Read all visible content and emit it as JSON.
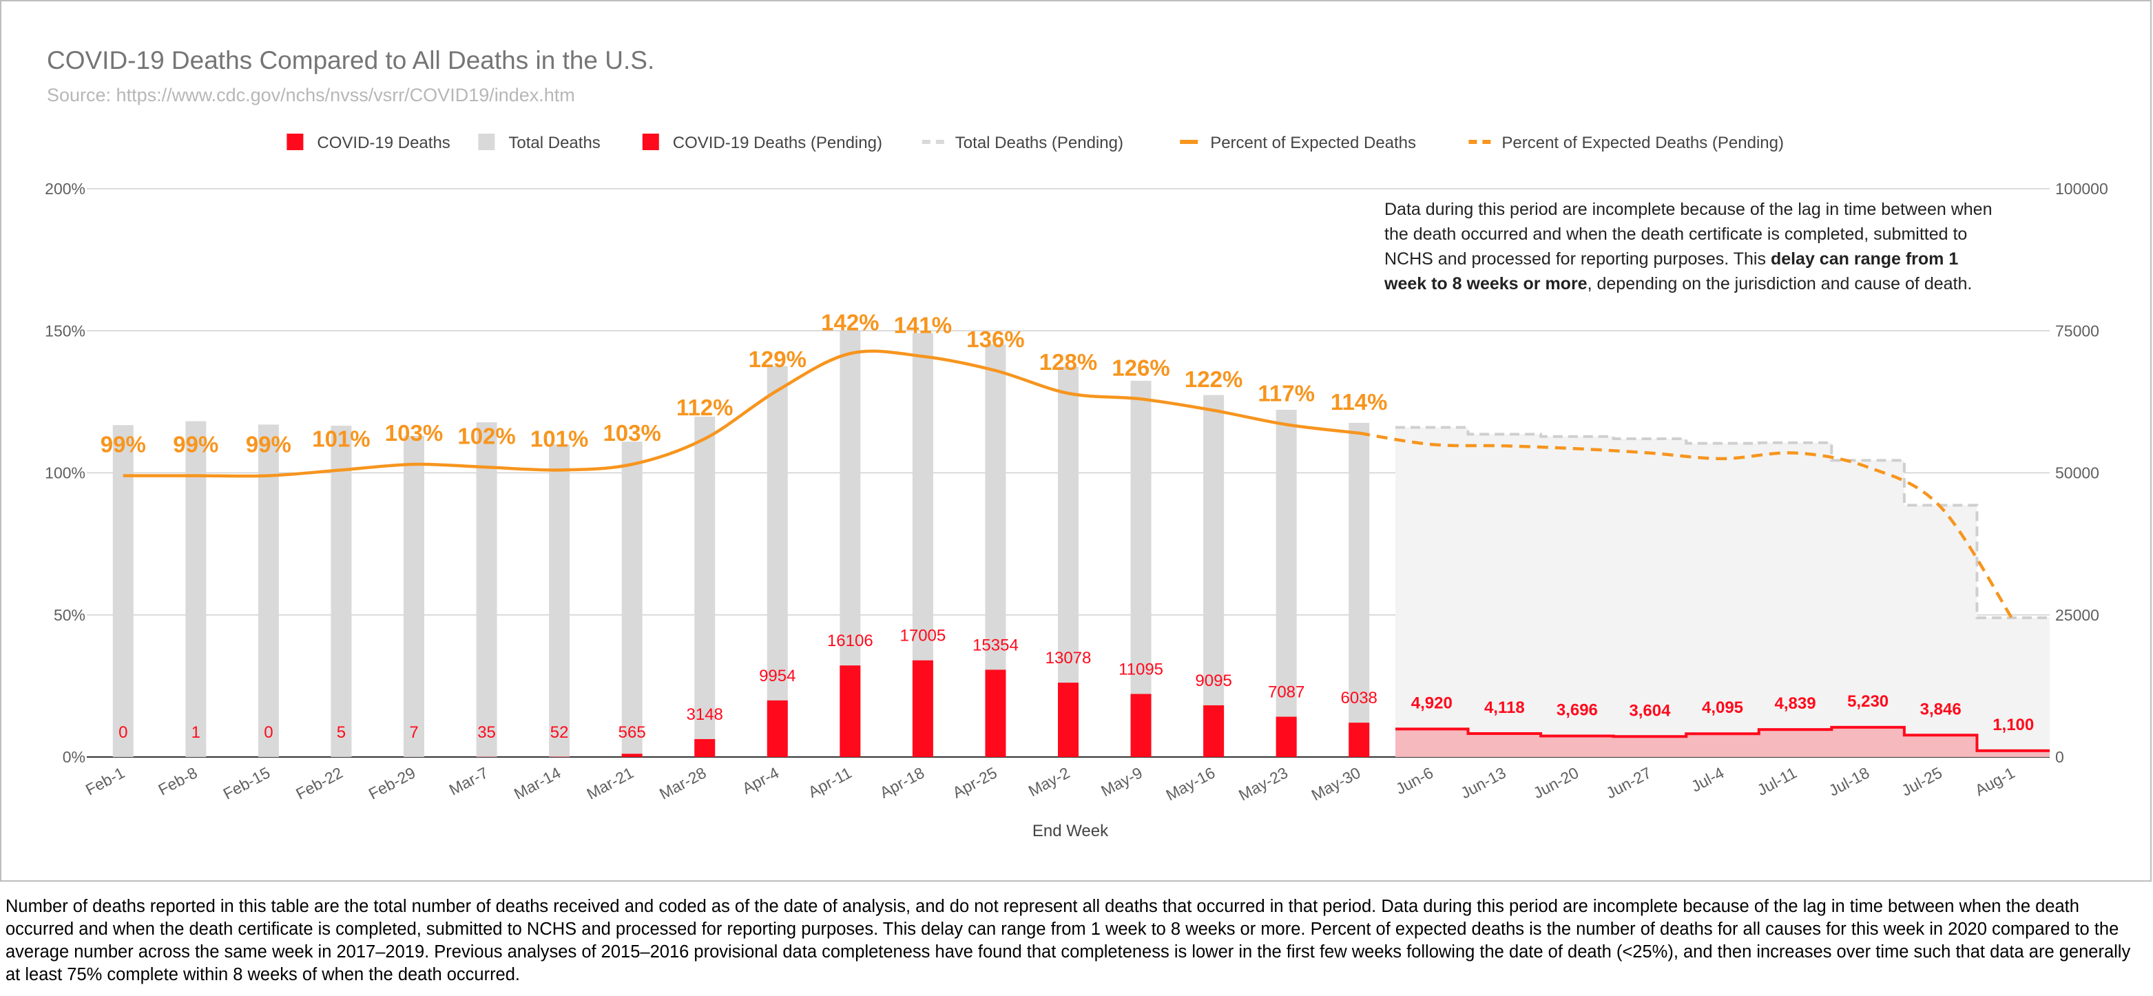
{
  "colors": {
    "covid": "#ff0a1c",
    "covid_pending_fill": "#f5b9be",
    "total": "#d9d9d9",
    "total_pending_fill": "#f3f3f3",
    "total_pending_line": "#cfcfcf",
    "percent": "#f7951e",
    "grid": "#d0d0d0",
    "text": "#5f5f5f",
    "title": "#757575",
    "source": "#b7b7b7"
  },
  "footnote": "Number of deaths reported in this table are the total number of deaths received and coded as of the date of analysis, and do not represent all deaths that occurred in that period. Data during this period are incomplete because of the lag in time between when the death occurred and when the death certificate is completed, submitted to NCHS and processed for reporting purposes. This delay can range from 1 week to 8 weeks or more. Percent of expected deaths is the number of deaths for all causes for this week in 2020 compared to the average number across the same week in 2017–2019. Previous analyses of 2015–2016 provisional data completeness have found that completeness is lower in the first few weeks following the date of death (<25%), and then increases over time such that data are generally at least 75% complete within 8 weeks of when the death occurred.",
  "annotation": {
    "part1": "Data during this period are incomplete because of the lag in time between when the death occurred and when the death certificate is completed, submitted to NCHS and processed for reporting purposes. This ",
    "bold": "delay can range from 1 week to 8 weeks or more",
    "part2": ", depending on the jurisdiction and cause of death."
  },
  "chart_data": {
    "type": "bar",
    "title": "COVID-19 Deaths Compared to All Deaths in the U.S.",
    "subtitle": "Source: https://www.cdc.gov/nchs/nvss/vsrr/COVID19/index.htm",
    "xlabel": "End Week",
    "ylabel_left": "",
    "ylabel_right": "",
    "y_left_lim": [
      0,
      200
    ],
    "y_left_ticks": [
      "0%",
      "50%",
      "100%",
      "150%",
      "200%"
    ],
    "y_right_lim": [
      0,
      100000
    ],
    "y_right_ticks": [
      "0",
      "25000",
      "50000",
      "75000",
      "100000"
    ],
    "legend_position": "top",
    "grid": true,
    "legend": [
      {
        "name": "COVID-19 Deaths",
        "kind": "box",
        "color": "#ff0a1c"
      },
      {
        "name": "Total Deaths",
        "kind": "box",
        "color": "#d9d9d9"
      },
      {
        "name": "COVID-19 Deaths (Pending)",
        "kind": "box",
        "color": "#ff0a1c"
      },
      {
        "name": "Total Deaths (Pending)",
        "kind": "dash",
        "color": "#d9d9d9"
      },
      {
        "name": "Percent of Expected Deaths",
        "kind": "line",
        "color": "#f7951e"
      },
      {
        "name": "Percent of Expected Deaths (Pending)",
        "kind": "dash",
        "color": "#f7951e"
      }
    ],
    "categories": [
      "Feb-1",
      "Feb-8",
      "Feb-15",
      "Feb-22",
      "Feb-29",
      "Mar-7",
      "Mar-14",
      "Mar-21",
      "Mar-28",
      "Apr-4",
      "Apr-11",
      "Apr-18",
      "Apr-25",
      "May-2",
      "May-9",
      "May-16",
      "May-23",
      "May-30",
      "Jun-6",
      "Jun-13",
      "Jun-20",
      "Jun-27",
      "Jul-4",
      "Jul-11",
      "Jul-18",
      "Jul-25",
      "Aug-1"
    ],
    "series": [
      {
        "name": "COVID-19 Deaths",
        "values": [
          0,
          1,
          0,
          5,
          7,
          35,
          52,
          565,
          3148,
          9954,
          16106,
          17005,
          15354,
          13078,
          11095,
          9095,
          7087,
          6038,
          null,
          null,
          null,
          null,
          null,
          null,
          null,
          null,
          null
        ],
        "labels": [
          "0",
          "1",
          "0",
          "5",
          "7",
          "35",
          "52",
          "565",
          "3148",
          "9954",
          "16106",
          "17005",
          "15354",
          "13078",
          "11095",
          "9095",
          "7087",
          "6038",
          "",
          "",
          "",
          "",
          "",
          "",
          "",
          "",
          ""
        ]
      },
      {
        "name": "Total Deaths",
        "values": [
          58400,
          59100,
          58500,
          58300,
          56500,
          58900,
          55000,
          55500,
          59900,
          68800,
          74900,
          74600,
          72600,
          68700,
          66200,
          63700,
          61100,
          58800,
          null,
          null,
          null,
          null,
          null,
          null,
          null,
          null,
          null
        ]
      },
      {
        "name": "COVID-19 Deaths (Pending)",
        "values": [
          null,
          null,
          null,
          null,
          null,
          null,
          null,
          null,
          null,
          null,
          null,
          null,
          null,
          null,
          null,
          null,
          null,
          null,
          4920,
          4118,
          3696,
          3604,
          4095,
          4839,
          5230,
          3846,
          1100
        ],
        "labels": [
          "",
          "",
          "",
          "",
          "",
          "",
          "",
          "",
          "",
          "",
          "",
          "",
          "",
          "",
          "",
          "",
          "",
          "",
          "4,920",
          "4,118",
          "3,696",
          "3,604",
          "4,095",
          "4,839",
          "5,230",
          "3,846",
          "1,100"
        ]
      },
      {
        "name": "Total Deaths (Pending)",
        "values": [
          null,
          null,
          null,
          null,
          null,
          null,
          null,
          null,
          null,
          null,
          null,
          null,
          null,
          null,
          null,
          null,
          null,
          null,
          58000,
          56800,
          56400,
          56000,
          55200,
          55300,
          52200,
          44300,
          24500
        ]
      },
      {
        "name": "Percent of Expected Deaths",
        "values": [
          99,
          99,
          99,
          101,
          103,
          102,
          101,
          103,
          112,
          129,
          142,
          141,
          136,
          128,
          126,
          122,
          117,
          114,
          null,
          null,
          null,
          null,
          null,
          null,
          null,
          null,
          null
        ],
        "labels": [
          "99%",
          "99%",
          "99%",
          "101%",
          "103%",
          "102%",
          "101%",
          "103%",
          "112%",
          "129%",
          "142%",
          "141%",
          "136%",
          "128%",
          "126%",
          "122%",
          "117%",
          "114%",
          "",
          "",
          "",
          "",
          "",
          "",
          "",
          "",
          ""
        ]
      },
      {
        "name": "Percent of Expected Deaths (Pending)",
        "values": [
          null,
          null,
          null,
          null,
          null,
          null,
          null,
          null,
          null,
          null,
          null,
          null,
          null,
          null,
          null,
          null,
          null,
          114,
          110,
          109.5,
          108.5,
          107,
          105,
          107,
          102,
          88,
          48
        ]
      }
    ]
  }
}
